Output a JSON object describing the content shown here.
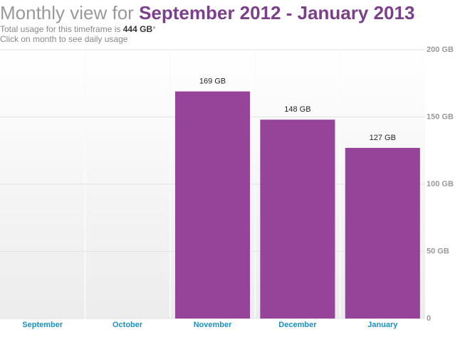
{
  "chart_data": {
    "type": "bar",
    "title": "Monthly view for",
    "title_period": "September 2012 - January 2013",
    "summary": "Total usage for this timeframe is",
    "summary_total": "444 GB",
    "summary_note": "*",
    "hint": "Click on month to see daily usage",
    "categories": [
      "September",
      "October",
      "November",
      "December",
      "January"
    ],
    "values": [
      0,
      0,
      169,
      148,
      127
    ],
    "value_labels": [
      null,
      null,
      "169 GB",
      "148 GB",
      "127 GB"
    ],
    "color": "#96439a",
    "ylim": [
      0,
      200
    ],
    "yticks": [
      0,
      {
        "value": 50,
        "label": "50 GB"
      },
      {
        "value": 100,
        "label": "100 GB"
      },
      {
        "value": 150,
        "label": "150 GB"
      },
      {
        "value": 200,
        "label": "200 GB"
      }
    ],
    "grid": true
  }
}
